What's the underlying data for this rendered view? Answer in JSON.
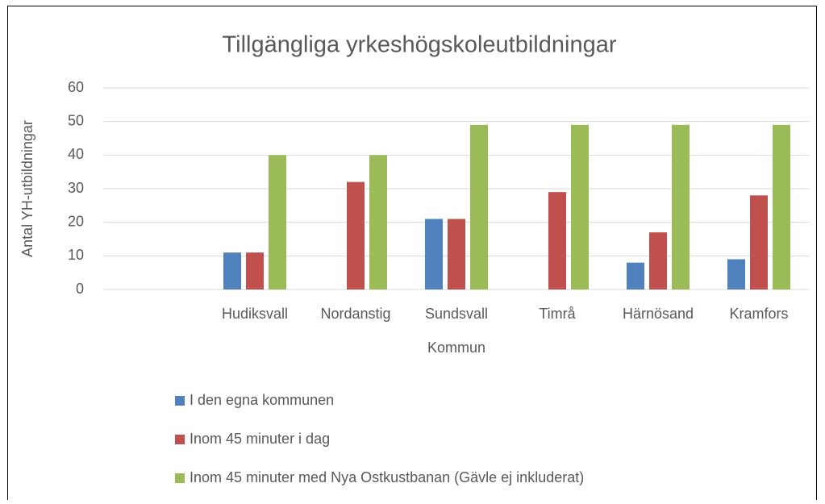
{
  "chart_data": {
    "type": "bar",
    "title": "Tillgängliga yrkeshögskoleutbildningar",
    "x_label": "Kommun",
    "y_label": "Antal YH-utbildningar",
    "categories": [
      null,
      "Hudiksvall",
      "Nordanstig",
      "Sundsvall",
      "Timrå",
      "Härnösand",
      "Kramfors"
    ],
    "series": [
      {
        "name": "I den egna kommunen",
        "color": "#4f81bd",
        "values": [
          null,
          11,
          0,
          21,
          0,
          8,
          9
        ]
      },
      {
        "name": "Inom 45 minuter i dag",
        "color": "#c0504d",
        "values": [
          null,
          11,
          32,
          21,
          29,
          17,
          28
        ]
      },
      {
        "name": "Inom 45 minuter med Nya Ostkustbanan (Gävle ej inkluderat)",
        "color": "#9bbb59",
        "values": [
          null,
          40,
          40,
          49,
          49,
          49,
          49
        ]
      }
    ],
    "ylim": [
      0,
      60
    ],
    "yticks": [
      0,
      10,
      20,
      30,
      40,
      50,
      60
    ],
    "grid": true,
    "legend": "bottom"
  }
}
